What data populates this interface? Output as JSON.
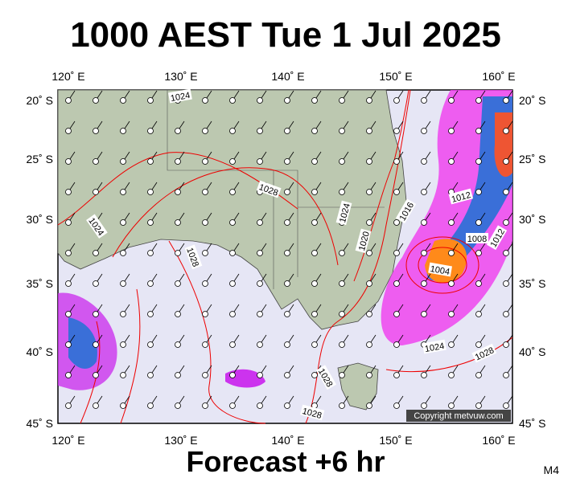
{
  "title": "1000 AEST Tue 1 Jul 2025",
  "footer": "Forecast +6 hr",
  "model": "M4",
  "copyright": "Copyright metvuw.com",
  "longitude_labels": [
    "120˚ E",
    "130˚ E",
    "140˚ E",
    "150˚ E",
    "160˚ E"
  ],
  "latitude_labels": [
    "20˚ S",
    "25˚ S",
    "30˚ S",
    "35˚ S",
    "40˚ S",
    "45˚ S"
  ],
  "isobar_labels": [
    "1024",
    "1028",
    "1024",
    "1028",
    "1024",
    "1020",
    "1016",
    "1012",
    "1008",
    "1012",
    "1004",
    "1024",
    "1028",
    "1028",
    "1028"
  ]
}
